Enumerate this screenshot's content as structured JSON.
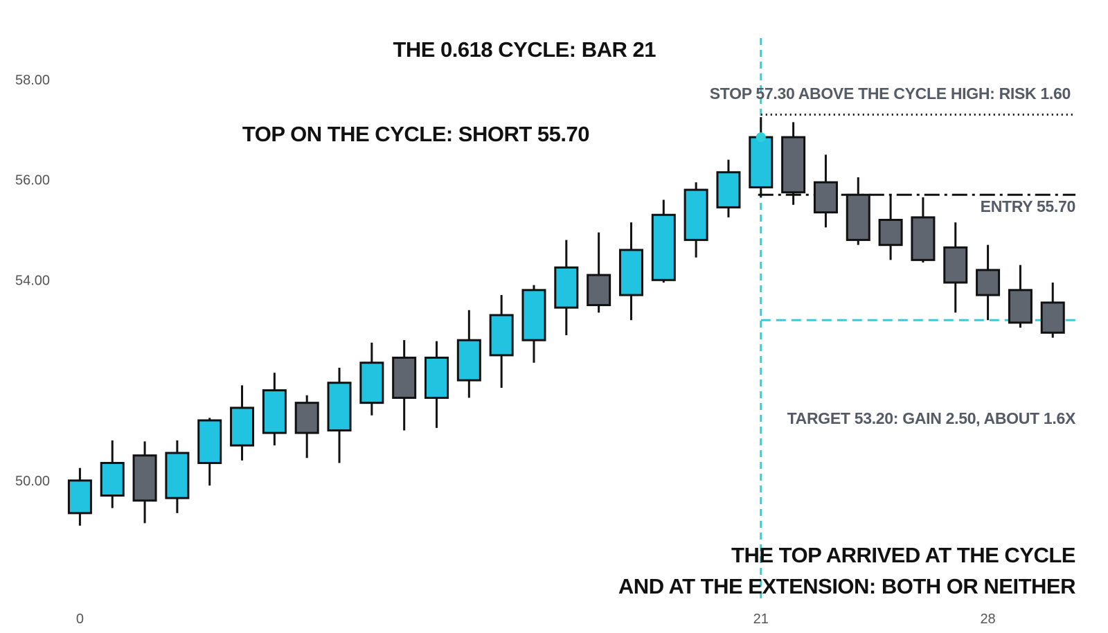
{
  "chart_data": {
    "type": "candlestick",
    "title": "",
    "xlabel": "",
    "ylabel": "",
    "ylim": [
      47.4,
      59.2
    ],
    "xlim": [
      -0.5,
      30.7
    ],
    "y_ticks": [
      {
        "value": 50,
        "label": "50.00"
      },
      {
        "value": 54,
        "label": "54.00"
      },
      {
        "value": 56,
        "label": "56.00"
      },
      {
        "value": 58,
        "label": "58.00"
      }
    ],
    "x_ticks": [
      {
        "value": 0,
        "label": "0"
      },
      {
        "value": 21,
        "label": "21"
      },
      {
        "value": 28,
        "label": "28"
      }
    ],
    "grid": false,
    "colors": {
      "bull": "#22c3e0",
      "bear": "#5f6670",
      "outline": "#111111",
      "cycle_line": "#2fcfd8",
      "target_line": "#2fcfd8",
      "entry_line": "#111111",
      "stop_line": "#111111"
    },
    "candles": [
      {
        "x": 0,
        "open": 49.35,
        "high": 50.25,
        "low": 49.1,
        "close": 50.0
      },
      {
        "x": 1,
        "open": 49.7,
        "high": 50.8,
        "low": 49.45,
        "close": 50.35
      },
      {
        "x": 2,
        "open": 50.5,
        "high": 50.78,
        "low": 49.15,
        "close": 49.6
      },
      {
        "x": 3,
        "open": 49.65,
        "high": 50.8,
        "low": 49.35,
        "close": 50.55
      },
      {
        "x": 4,
        "open": 50.35,
        "high": 51.25,
        "low": 49.9,
        "close": 51.2
      },
      {
        "x": 5,
        "open": 50.7,
        "high": 51.9,
        "low": 50.4,
        "close": 51.45
      },
      {
        "x": 6,
        "open": 50.95,
        "high": 52.15,
        "low": 50.7,
        "close": 51.8
      },
      {
        "x": 7,
        "open": 51.55,
        "high": 51.7,
        "low": 50.45,
        "close": 50.95
      },
      {
        "x": 8,
        "open": 51.0,
        "high": 52.25,
        "low": 50.35,
        "close": 51.95
      },
      {
        "x": 9,
        "open": 51.55,
        "high": 52.75,
        "low": 51.3,
        "close": 52.35
      },
      {
        "x": 10,
        "open": 52.45,
        "high": 52.8,
        "low": 51.0,
        "close": 51.65
      },
      {
        "x": 11,
        "open": 51.65,
        "high": 52.78,
        "low": 51.05,
        "close": 52.45
      },
      {
        "x": 12,
        "open": 52.0,
        "high": 53.4,
        "low": 51.65,
        "close": 52.8
      },
      {
        "x": 13,
        "open": 52.5,
        "high": 53.7,
        "low": 51.85,
        "close": 53.3
      },
      {
        "x": 14,
        "open": 52.8,
        "high": 53.9,
        "low": 52.35,
        "close": 53.8
      },
      {
        "x": 15,
        "open": 53.45,
        "high": 54.8,
        "low": 52.9,
        "close": 54.25
      },
      {
        "x": 16,
        "open": 54.1,
        "high": 54.95,
        "low": 53.35,
        "close": 53.5
      },
      {
        "x": 17,
        "open": 53.7,
        "high": 55.15,
        "low": 53.2,
        "close": 54.6
      },
      {
        "x": 18,
        "open": 54.0,
        "high": 55.6,
        "low": 53.95,
        "close": 55.3
      },
      {
        "x": 19,
        "open": 54.8,
        "high": 55.95,
        "low": 54.45,
        "close": 55.8
      },
      {
        "x": 20,
        "open": 55.45,
        "high": 56.4,
        "low": 55.25,
        "close": 56.15
      },
      {
        "x": 21,
        "open": 55.85,
        "high": 57.25,
        "low": 55.65,
        "close": 56.85
      },
      {
        "x": 22,
        "open": 56.85,
        "high": 57.15,
        "low": 55.5,
        "close": 55.75
      },
      {
        "x": 23,
        "open": 55.95,
        "high": 56.5,
        "low": 55.05,
        "close": 55.35
      },
      {
        "x": 24,
        "open": 55.7,
        "high": 56.05,
        "low": 54.7,
        "close": 54.8
      },
      {
        "x": 25,
        "open": 55.2,
        "high": 55.7,
        "low": 54.4,
        "close": 54.7
      },
      {
        "x": 26,
        "open": 55.25,
        "high": 55.65,
        "low": 54.35,
        "close": 54.4
      },
      {
        "x": 27,
        "open": 54.65,
        "high": 55.15,
        "low": 53.35,
        "close": 53.95
      },
      {
        "x": 28,
        "open": 54.2,
        "high": 54.7,
        "low": 53.2,
        "close": 53.7
      },
      {
        "x": 29,
        "open": 53.8,
        "high": 54.3,
        "low": 53.05,
        "close": 53.15
      },
      {
        "x": 30,
        "open": 53.55,
        "high": 53.95,
        "low": 52.85,
        "close": 52.95
      }
    ],
    "cycle_bar": 21,
    "levels": {
      "stop": 57.3,
      "entry": 55.7,
      "target": 53.2
    },
    "entry_marker": {
      "x": 21,
      "y": 56.85
    },
    "annotations": {
      "cycle": "THE 0.618 CYCLE: BAR 21",
      "top": "TOP ON THE CYCLE: SHORT 55.70",
      "stop": "STOP 57.30 ABOVE THE CYCLE HIGH: RISK 1.60",
      "entry": "ENTRY 55.70",
      "target": "TARGET 53.20: GAIN 2.50, ABOUT 1.6X",
      "note_line1": "THE TOP ARRIVED AT THE CYCLE",
      "note_line2": "AND AT THE EXTENSION: BOTH OR NEITHER"
    }
  }
}
